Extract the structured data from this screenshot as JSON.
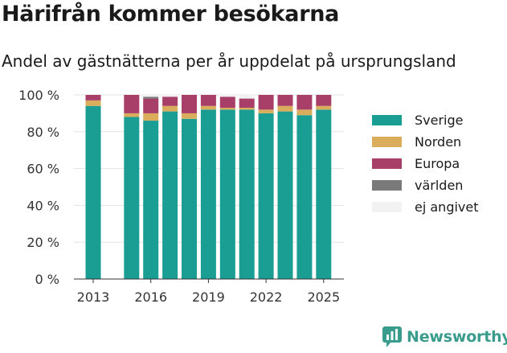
{
  "header": {
    "title": "Härifrån kommer besökarna",
    "subtitle": "Andel av gästnätterna per år uppdelat på ursprungsland"
  },
  "brand": {
    "name": "Newsworthy",
    "icon": "bar-chart-speech-bubble-icon",
    "color": "#3a9c8c"
  },
  "chart_data": {
    "type": "bar",
    "stacked": true,
    "categories": [
      "2013",
      "2014",
      "2015",
      "2016",
      "2017",
      "2018",
      "2019",
      "2020",
      "2021",
      "2022",
      "2023",
      "2024",
      "2025"
    ],
    "series": [
      {
        "name": "Sverige",
        "color": "#1a9e94",
        "values": [
          94,
          null,
          88,
          86,
          91,
          87,
          92,
          92,
          92,
          90,
          91,
          89,
          92
        ]
      },
      {
        "name": "Norden",
        "color": "#d9ad5b",
        "values": [
          3,
          null,
          2,
          4,
          3,
          3,
          2,
          1,
          1,
          2,
          3,
          3,
          2
        ]
      },
      {
        "name": "Europa",
        "color": "#a83f68",
        "values": [
          3,
          null,
          10,
          8,
          5,
          10,
          6,
          6,
          5,
          8,
          6,
          8,
          6
        ]
      },
      {
        "name": "världen",
        "color": "#7a7a7a",
        "values": [
          0,
          null,
          0,
          1,
          0,
          0,
          0,
          0,
          0,
          0,
          0,
          0,
          0
        ]
      },
      {
        "name": "ej angivet",
        "color": "#f2f2f2",
        "values": [
          0,
          null,
          0,
          1,
          1,
          0,
          0,
          1,
          2,
          0,
          0,
          0,
          0
        ]
      }
    ],
    "x_tick_labels": [
      "2013",
      "2016",
      "2019",
      "2022",
      "2025"
    ],
    "y_ticks": [
      0,
      20,
      40,
      60,
      80,
      100
    ],
    "y_tick_labels": [
      "0 %",
      "20 %",
      "40 %",
      "60 %",
      "80 %",
      "100 %"
    ],
    "ylim": [
      0,
      100
    ],
    "grid": "horizontal",
    "legend_position": "right"
  }
}
